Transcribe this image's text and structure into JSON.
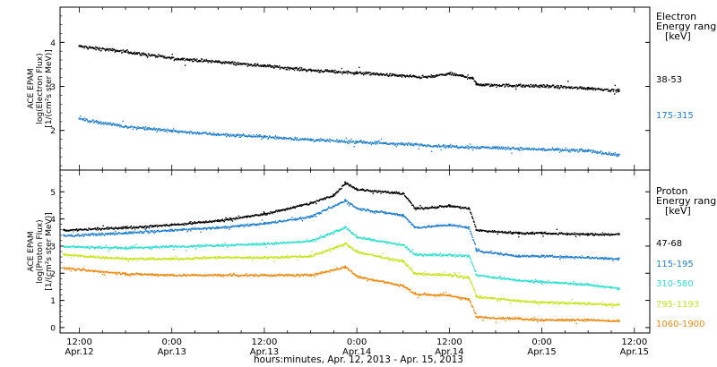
{
  "chart_data": [
    {
      "type": "scatter",
      "panel": "electron",
      "ylabel_lines": [
        "ACE EPAM",
        "log(Electron Flux)",
        "[1/(cm²s ster MeV)]"
      ],
      "ylim": [
        1.1,
        4.8
      ],
      "yticks": [
        2,
        3,
        4
      ],
      "xlim": [
        "2013-04-12T09:30",
        "2013-04-15T14:00"
      ],
      "grid": false,
      "legend_title": [
        "Electron",
        "Energy ranges",
        "[keV]"
      ],
      "series": [
        {
          "name": "38-53",
          "color": "#000000",
          "x": [
            "2013-04-12T12:00",
            "2013-04-12T18:00",
            "2013-04-13T00:00",
            "2013-04-13T06:00",
            "2013-04-13T12:00",
            "2013-04-13T18:00",
            "2013-04-14T00:00",
            "2013-04-14T06:00",
            "2013-04-14T09:00",
            "2013-04-14T12:00",
            "2013-04-14T15:00",
            "2013-04-14T15:30",
            "2013-04-14T21:00",
            "2013-04-15T00:00",
            "2013-04-15T06:00",
            "2013-04-15T10:00"
          ],
          "values": [
            3.92,
            3.8,
            3.65,
            3.57,
            3.48,
            3.38,
            3.32,
            3.25,
            3.22,
            3.3,
            3.2,
            3.05,
            3.03,
            3.02,
            2.97,
            2.92
          ]
        },
        {
          "name": "175-315",
          "color": "#1f7fd0",
          "x": [
            "2013-04-12T12:00",
            "2013-04-12T18:00",
            "2013-04-13T00:00",
            "2013-04-13T06:00",
            "2013-04-13T12:00",
            "2013-04-13T18:00",
            "2013-04-14T00:00",
            "2013-04-14T06:00",
            "2013-04-14T12:00",
            "2013-04-14T18:00",
            "2013-04-15T00:00",
            "2013-04-15T06:00",
            "2013-04-15T10:00"
          ],
          "values": [
            2.27,
            2.1,
            2.0,
            1.92,
            1.87,
            1.8,
            1.75,
            1.7,
            1.65,
            1.62,
            1.58,
            1.55,
            1.45
          ]
        }
      ]
    },
    {
      "type": "scatter",
      "panel": "proton",
      "ylabel_lines": [
        "ACE EPAM",
        "log(Proton Flux)",
        "[1/(cm²s ster MeV)]"
      ],
      "ylim": [
        -0.2,
        5.8
      ],
      "yticks": [
        0,
        1,
        2,
        3,
        4,
        5
      ],
      "xlim": [
        "2013-04-12T09:30",
        "2013-04-15T14:00"
      ],
      "grid": false,
      "legend_title": [
        "Proton",
        "Energy ranges",
        "[keV]"
      ],
      "series": [
        {
          "name": "47-68",
          "color": "#000000",
          "x": [
            "2013-04-12T10:00",
            "2013-04-12T18:00",
            "2013-04-13T00:00",
            "2013-04-13T06:00",
            "2013-04-13T12:00",
            "2013-04-13T18:00",
            "2013-04-13T21:00",
            "2013-04-13T22:30",
            "2013-04-14T00:00",
            "2013-04-14T06:00",
            "2013-04-14T07:30",
            "2013-04-14T12:00",
            "2013-04-14T14:30",
            "2013-04-14T15:30",
            "2013-04-14T21:00",
            "2013-04-15T00:00",
            "2013-04-15T06:00",
            "2013-04-15T10:00"
          ],
          "values": [
            3.6,
            3.7,
            3.8,
            3.95,
            4.2,
            4.6,
            4.9,
            5.35,
            5.1,
            4.95,
            4.4,
            4.5,
            4.4,
            3.6,
            3.5,
            3.5,
            3.45,
            3.45
          ]
        },
        {
          "name": "115-195",
          "color": "#1f7fd0",
          "x": [
            "2013-04-12T10:00",
            "2013-04-12T18:00",
            "2013-04-13T00:00",
            "2013-04-13T06:00",
            "2013-04-13T12:00",
            "2013-04-13T18:00",
            "2013-04-13T22:30",
            "2013-04-14T00:00",
            "2013-04-14T06:00",
            "2013-04-14T07:30",
            "2013-04-14T12:00",
            "2013-04-14T14:30",
            "2013-04-14T15:30",
            "2013-04-14T21:00",
            "2013-04-15T00:00",
            "2013-04-15T06:00",
            "2013-04-15T10:00"
          ],
          "values": [
            3.4,
            3.5,
            3.6,
            3.7,
            3.85,
            4.1,
            4.7,
            4.4,
            4.15,
            3.7,
            3.8,
            3.7,
            2.85,
            2.65,
            2.65,
            2.6,
            2.55
          ]
        },
        {
          "name": "310-580",
          "color": "#2fe0d0",
          "x": [
            "2013-04-12T10:00",
            "2013-04-12T18:00",
            "2013-04-13T00:00",
            "2013-04-13T06:00",
            "2013-04-13T12:00",
            "2013-04-13T18:00",
            "2013-04-13T22:30",
            "2013-04-14T00:00",
            "2013-04-14T06:00",
            "2013-04-14T07:30",
            "2013-04-14T12:00",
            "2013-04-14T14:30",
            "2013-04-14T15:30",
            "2013-04-14T21:00",
            "2013-04-15T00:00",
            "2013-04-15T06:00",
            "2013-04-15T10:00"
          ],
          "values": [
            3.0,
            2.95,
            3.0,
            3.05,
            3.1,
            3.2,
            3.7,
            3.35,
            3.05,
            2.7,
            2.7,
            2.65,
            1.95,
            1.75,
            1.7,
            1.6,
            1.45
          ]
        },
        {
          "name": "795-1193",
          "color": "#c8e41a",
          "x": [
            "2013-04-12T10:00",
            "2013-04-12T18:00",
            "2013-04-13T00:00",
            "2013-04-13T06:00",
            "2013-04-13T12:00",
            "2013-04-13T18:00",
            "2013-04-13T22:30",
            "2013-04-14T00:00",
            "2013-04-14T06:00",
            "2013-04-14T07:30",
            "2013-04-14T12:00",
            "2013-04-14T14:30",
            "2013-04-14T15:30",
            "2013-04-14T21:00",
            "2013-04-15T00:00",
            "2013-04-15T06:00",
            "2013-04-15T10:00"
          ],
          "values": [
            2.7,
            2.55,
            2.55,
            2.6,
            2.6,
            2.65,
            3.1,
            2.8,
            2.45,
            2.0,
            1.95,
            1.85,
            1.15,
            1.0,
            0.95,
            0.9,
            0.85
          ]
        },
        {
          "name": "1060-1900",
          "color": "#f08a10",
          "x": [
            "2013-04-12T10:00",
            "2013-04-12T18:00",
            "2013-04-13T00:00",
            "2013-04-13T06:00",
            "2013-04-13T12:00",
            "2013-04-13T18:00",
            "2013-04-13T22:30",
            "2013-04-14T00:00",
            "2013-04-14T06:00",
            "2013-04-14T07:30",
            "2013-04-14T12:00",
            "2013-04-14T14:30",
            "2013-04-14T15:30",
            "2013-04-14T21:00",
            "2013-04-15T00:00",
            "2013-04-15T06:00",
            "2013-04-15T10:00"
          ],
          "values": [
            2.2,
            2.0,
            1.95,
            1.95,
            1.95,
            1.95,
            2.25,
            1.9,
            1.55,
            1.25,
            1.2,
            1.05,
            0.4,
            0.35,
            0.3,
            0.3,
            0.25
          ]
        }
      ]
    }
  ],
  "x_axis": {
    "tick_labels": [
      {
        "time": "12:00",
        "date": "Apr.12",
        "at": "2013-04-12T12:00"
      },
      {
        "time": "0:00",
        "date": "Apr.13",
        "at": "2013-04-13T00:00"
      },
      {
        "time": "12:00",
        "date": "Apr.13",
        "at": "2013-04-13T12:00"
      },
      {
        "time": "0:00",
        "date": "Apr.14",
        "at": "2013-04-14T00:00"
      },
      {
        "time": "12:00",
        "date": "Apr.14",
        "at": "2013-04-14T12:00"
      },
      {
        "time": "0:00",
        "date": "Apr.15",
        "at": "2013-04-15T00:00"
      },
      {
        "time": "12:00",
        "date": "Apr.15",
        "at": "2013-04-15T12:00"
      }
    ],
    "label": "hours:minutes, Apr. 12, 2013 - Apr. 15, 2013"
  }
}
